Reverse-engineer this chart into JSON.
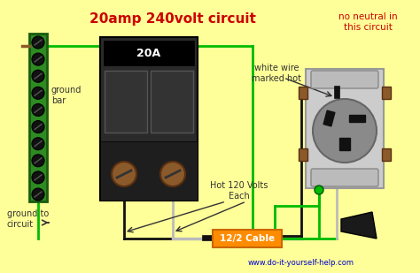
{
  "bg_color": "#FFFF99",
  "title": "20amp 240volt circuit",
  "title_color": "#CC0000",
  "title_fontsize": 11,
  "subtitle": "no neutral in\nthis circuit",
  "subtitle_color": "#CC0000",
  "subtitle_fontsize": 7.5,
  "watermark": "www.do-it-yourself-help.com",
  "watermark_color": "#0000CC",
  "watermark_fontsize": 6,
  "label_ground_bar": "ground\nbar",
  "label_ground_circuit": "ground to\ncircuit",
  "label_white_wire": "white wire\nmarked hot",
  "label_hot_volts": "Hot 120 Volts\nEach",
  "label_cable": "12/2 Cable",
  "cable_label_color": "#FFFFFF",
  "cable_bg_color": "#FF8C00",
  "breaker_body_color": "#2A2A2A",
  "breaker_bottom_color": "#1A1A1A",
  "breaker_label": "20A",
  "ground_bar_color": "#2E8B22",
  "ground_bar_edge": "#1A5A10",
  "screw_color": "#1A1A00",
  "wire_green": "#00BB00",
  "wire_black": "#111111",
  "wire_white": "#BBBBBB",
  "outlet_body_color": "#CCCCCC",
  "outlet_face_color": "#888888",
  "outlet_slot_color": "#111111",
  "screw_brown": "#8B5A2B",
  "text_color": "#333333",
  "font_size_labels": 7
}
